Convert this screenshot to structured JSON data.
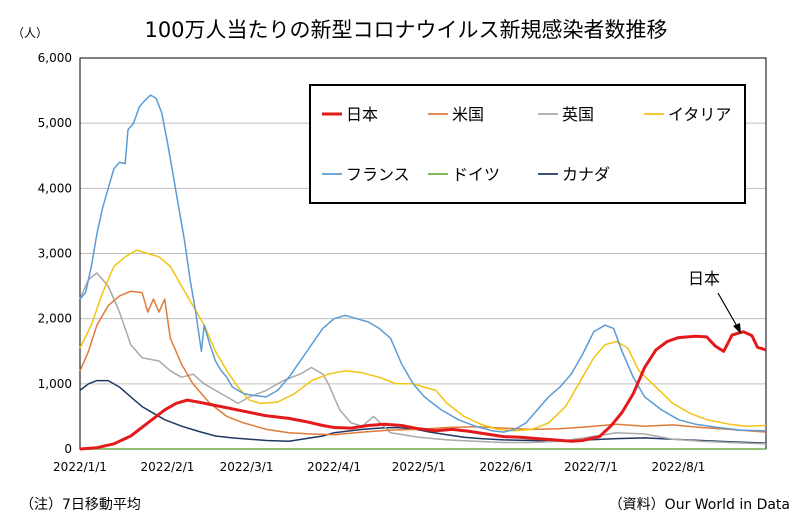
{
  "chart_data": {
    "type": "line",
    "title": "100万人当たりの新型コロナウイルス新規感染者数推移",
    "unit_label": "（人）",
    "ylim": [
      0,
      6000
    ],
    "y_ticks": [
      "0",
      "1,000",
      "2,000",
      "3,000",
      "4,000",
      "5,000",
      "6,000"
    ],
    "x_ticks": [
      {
        "label": "2022/1/1",
        "day": 0
      },
      {
        "label": "2022/2/1",
        "day": 31
      },
      {
        "label": "2022/3/1",
        "day": 59
      },
      {
        "label": "2022/4/1",
        "day": 90
      },
      {
        "label": "2022/5/1",
        "day": 120
      },
      {
        "label": "2022/6/1",
        "day": 151
      },
      {
        "label": "2022/7/1",
        "day": 181
      },
      {
        "label": "2022/8/1",
        "day": 212
      }
    ],
    "x_range_days": [
      0,
      243
    ],
    "grid": "horizontal",
    "legend_position": "top-right",
    "annotation": {
      "text": "日本",
      "day": 233,
      "value": 1800
    },
    "series": [
      {
        "name": "日本",
        "color": "#e31a1c",
        "width": 3,
        "points": [
          [
            0,
            0
          ],
          [
            6,
            20
          ],
          [
            12,
            80
          ],
          [
            18,
            200
          ],
          [
            24,
            400
          ],
          [
            30,
            600
          ],
          [
            34,
            700
          ],
          [
            38,
            750
          ],
          [
            42,
            720
          ],
          [
            50,
            650
          ],
          [
            58,
            580
          ],
          [
            66,
            510
          ],
          [
            74,
            470
          ],
          [
            80,
            420
          ],
          [
            86,
            360
          ],
          [
            90,
            330
          ],
          [
            96,
            320
          ],
          [
            102,
            360
          ],
          [
            108,
            380
          ],
          [
            114,
            360
          ],
          [
            120,
            310
          ],
          [
            126,
            280
          ],
          [
            132,
            300
          ],
          [
            138,
            270
          ],
          [
            144,
            230
          ],
          [
            150,
            190
          ],
          [
            156,
            180
          ],
          [
            162,
            160
          ],
          [
            168,
            140
          ],
          [
            174,
            120
          ],
          [
            178,
            130
          ],
          [
            184,
            190
          ],
          [
            188,
            350
          ],
          [
            192,
            560
          ],
          [
            196,
            850
          ],
          [
            200,
            1250
          ],
          [
            204,
            1520
          ],
          [
            208,
            1650
          ],
          [
            212,
            1710
          ],
          [
            218,
            1730
          ],
          [
            222,
            1720
          ],
          [
            225,
            1580
          ],
          [
            228,
            1500
          ],
          [
            231,
            1750
          ],
          [
            235,
            1800
          ],
          [
            238,
            1740
          ],
          [
            240,
            1560
          ],
          [
            243,
            1520
          ]
        ]
      },
      {
        "name": "米国",
        "color": "#e07b39",
        "width": 1.5,
        "points": [
          [
            0,
            1200
          ],
          [
            3,
            1500
          ],
          [
            6,
            1900
          ],
          [
            10,
            2200
          ],
          [
            14,
            2350
          ],
          [
            18,
            2420
          ],
          [
            22,
            2400
          ],
          [
            24,
            2100
          ],
          [
            26,
            2300
          ],
          [
            28,
            2100
          ],
          [
            30,
            2300
          ],
          [
            32,
            1700
          ],
          [
            36,
            1300
          ],
          [
            40,
            1000
          ],
          [
            46,
            700
          ],
          [
            52,
            500
          ],
          [
            58,
            400
          ],
          [
            66,
            300
          ],
          [
            74,
            250
          ],
          [
            82,
            230
          ],
          [
            90,
            220
          ],
          [
            100,
            260
          ],
          [
            110,
            290
          ],
          [
            120,
            300
          ],
          [
            130,
            330
          ],
          [
            140,
            340
          ],
          [
            150,
            320
          ],
          [
            160,
            300
          ],
          [
            170,
            310
          ],
          [
            180,
            340
          ],
          [
            190,
            380
          ],
          [
            200,
            350
          ],
          [
            210,
            370
          ],
          [
            220,
            330
          ],
          [
            230,
            300
          ],
          [
            243,
            260
          ]
        ]
      },
      {
        "name": "英国",
        "color": "#a9a9a9",
        "width": 1.5,
        "points": [
          [
            0,
            2300
          ],
          [
            3,
            2600
          ],
          [
            6,
            2700
          ],
          [
            10,
            2500
          ],
          [
            14,
            2100
          ],
          [
            18,
            1600
          ],
          [
            22,
            1400
          ],
          [
            28,
            1350
          ],
          [
            32,
            1200
          ],
          [
            36,
            1100
          ],
          [
            40,
            1150
          ],
          [
            44,
            1000
          ],
          [
            48,
            900
          ],
          [
            52,
            800
          ],
          [
            56,
            700
          ],
          [
            60,
            800
          ],
          [
            66,
            900
          ],
          [
            72,
            1050
          ],
          [
            78,
            1150
          ],
          [
            82,
            1250
          ],
          [
            86,
            1150
          ],
          [
            88,
            1000
          ],
          [
            92,
            600
          ],
          [
            96,
            400
          ],
          [
            100,
            350
          ],
          [
            104,
            500
          ],
          [
            110,
            250
          ],
          [
            120,
            180
          ],
          [
            130,
            140
          ],
          [
            140,
            120
          ],
          [
            150,
            100
          ],
          [
            160,
            100
          ],
          [
            170,
            120
          ],
          [
            180,
            180
          ],
          [
            190,
            250
          ],
          [
            200,
            230
          ],
          [
            210,
            150
          ],
          [
            220,
            120
          ],
          [
            230,
            100
          ],
          [
            243,
            80
          ]
        ]
      },
      {
        "name": "イタリア",
        "color": "#f2c313",
        "width": 1.5,
        "points": [
          [
            0,
            1550
          ],
          [
            4,
            1900
          ],
          [
            8,
            2400
          ],
          [
            12,
            2800
          ],
          [
            16,
            2950
          ],
          [
            20,
            3050
          ],
          [
            24,
            3000
          ],
          [
            28,
            2950
          ],
          [
            32,
            2800
          ],
          [
            36,
            2500
          ],
          [
            40,
            2200
          ],
          [
            44,
            1900
          ],
          [
            48,
            1500
          ],
          [
            52,
            1200
          ],
          [
            56,
            950
          ],
          [
            60,
            750
          ],
          [
            64,
            700
          ],
          [
            70,
            720
          ],
          [
            76,
            850
          ],
          [
            82,
            1050
          ],
          [
            88,
            1150
          ],
          [
            94,
            1200
          ],
          [
            100,
            1170
          ],
          [
            106,
            1100
          ],
          [
            112,
            1000
          ],
          [
            118,
            1000
          ],
          [
            122,
            950
          ],
          [
            126,
            900
          ],
          [
            130,
            700
          ],
          [
            136,
            500
          ],
          [
            142,
            380
          ],
          [
            148,
            300
          ],
          [
            154,
            280
          ],
          [
            160,
            300
          ],
          [
            166,
            400
          ],
          [
            172,
            650
          ],
          [
            178,
            1100
          ],
          [
            182,
            1400
          ],
          [
            186,
            1600
          ],
          [
            190,
            1650
          ],
          [
            194,
            1550
          ],
          [
            198,
            1200
          ],
          [
            204,
            950
          ],
          [
            210,
            700
          ],
          [
            216,
            550
          ],
          [
            222,
            450
          ],
          [
            230,
            380
          ],
          [
            236,
            350
          ],
          [
            243,
            360
          ]
        ]
      },
      {
        "name": "フランス",
        "color": "#5b9bd5",
        "width": 1.5,
        "points": [
          [
            0,
            2300
          ],
          [
            2,
            2400
          ],
          [
            4,
            2800
          ],
          [
            6,
            3300
          ],
          [
            8,
            3700
          ],
          [
            10,
            4000
          ],
          [
            12,
            4300
          ],
          [
            14,
            4400
          ],
          [
            16,
            4380
          ],
          [
            17,
            4900
          ],
          [
            19,
            5000
          ],
          [
            21,
            5250
          ],
          [
            23,
            5350
          ],
          [
            25,
            5430
          ],
          [
            27,
            5380
          ],
          [
            29,
            5150
          ],
          [
            31,
            4700
          ],
          [
            33,
            4200
          ],
          [
            35,
            3700
          ],
          [
            37,
            3200
          ],
          [
            39,
            2600
          ],
          [
            41,
            2100
          ],
          [
            43,
            1500
          ],
          [
            44,
            1900
          ],
          [
            46,
            1600
          ],
          [
            48,
            1350
          ],
          [
            50,
            1200
          ],
          [
            52,
            1100
          ],
          [
            54,
            950
          ],
          [
            58,
            850
          ],
          [
            62,
            820
          ],
          [
            66,
            800
          ],
          [
            70,
            900
          ],
          [
            74,
            1100
          ],
          [
            78,
            1350
          ],
          [
            82,
            1600
          ],
          [
            86,
            1850
          ],
          [
            90,
            2000
          ],
          [
            94,
            2050
          ],
          [
            98,
            2000
          ],
          [
            102,
            1950
          ],
          [
            106,
            1850
          ],
          [
            110,
            1700
          ],
          [
            114,
            1300
          ],
          [
            118,
            1000
          ],
          [
            122,
            800
          ],
          [
            128,
            600
          ],
          [
            134,
            450
          ],
          [
            140,
            350
          ],
          [
            146,
            280
          ],
          [
            150,
            260
          ],
          [
            154,
            300
          ],
          [
            158,
            400
          ],
          [
            162,
            600
          ],
          [
            166,
            800
          ],
          [
            170,
            950
          ],
          [
            174,
            1150
          ],
          [
            178,
            1450
          ],
          [
            182,
            1800
          ],
          [
            186,
            1900
          ],
          [
            189,
            1850
          ],
          [
            192,
            1500
          ],
          [
            196,
            1100
          ],
          [
            200,
            800
          ],
          [
            206,
            600
          ],
          [
            212,
            450
          ],
          [
            218,
            380
          ],
          [
            226,
            330
          ],
          [
            234,
            290
          ],
          [
            243,
            280
          ]
        ]
      },
      {
        "name": "ドイツ",
        "color": "#70ad47",
        "width": 1.5,
        "points": [
          [
            0,
            0
          ],
          [
            243,
            0
          ]
        ]
      },
      {
        "name": "カナダ",
        "color": "#1f3864",
        "width": 1.5,
        "points": [
          [
            0,
            900
          ],
          [
            3,
            1000
          ],
          [
            6,
            1050
          ],
          [
            10,
            1050
          ],
          [
            14,
            950
          ],
          [
            18,
            800
          ],
          [
            22,
            650
          ],
          [
            26,
            550
          ],
          [
            30,
            450
          ],
          [
            36,
            350
          ],
          [
            42,
            270
          ],
          [
            48,
            200
          ],
          [
            54,
            170
          ],
          [
            60,
            150
          ],
          [
            66,
            130
          ],
          [
            74,
            120
          ],
          [
            80,
            160
          ],
          [
            86,
            200
          ],
          [
            90,
            250
          ],
          [
            96,
            280
          ],
          [
            100,
            300
          ],
          [
            106,
            320
          ],
          [
            112,
            330
          ],
          [
            118,
            310
          ],
          [
            124,
            260
          ],
          [
            130,
            220
          ],
          [
            136,
            180
          ],
          [
            142,
            160
          ],
          [
            150,
            140
          ],
          [
            160,
            130
          ],
          [
            170,
            120
          ],
          [
            180,
            140
          ],
          [
            190,
            160
          ],
          [
            200,
            170
          ],
          [
            210,
            150
          ],
          [
            220,
            130
          ],
          [
            230,
            110
          ],
          [
            243,
            90
          ]
        ]
      }
    ],
    "legend": [
      {
        "name": "日本",
        "color": "#e31a1c",
        "row": 0,
        "col": 0
      },
      {
        "name": "米国",
        "color": "#e07b39",
        "row": 0,
        "col": 1
      },
      {
        "name": "英国",
        "color": "#a9a9a9",
        "row": 0,
        "col": 2
      },
      {
        "name": "イタリア",
        "color": "#f2c313",
        "row": 0,
        "col": 3
      },
      {
        "name": "フランス",
        "color": "#5b9bd5",
        "row": 1,
        "col": 0
      },
      {
        "name": "ドイツ",
        "color": "#70ad47",
        "row": 1,
        "col": 1
      },
      {
        "name": "カナダ",
        "color": "#1f3864",
        "row": 1,
        "col": 2
      }
    ]
  },
  "footer": {
    "note": "（注）7日移動平均",
    "source": "（資料）Our World in Data"
  }
}
